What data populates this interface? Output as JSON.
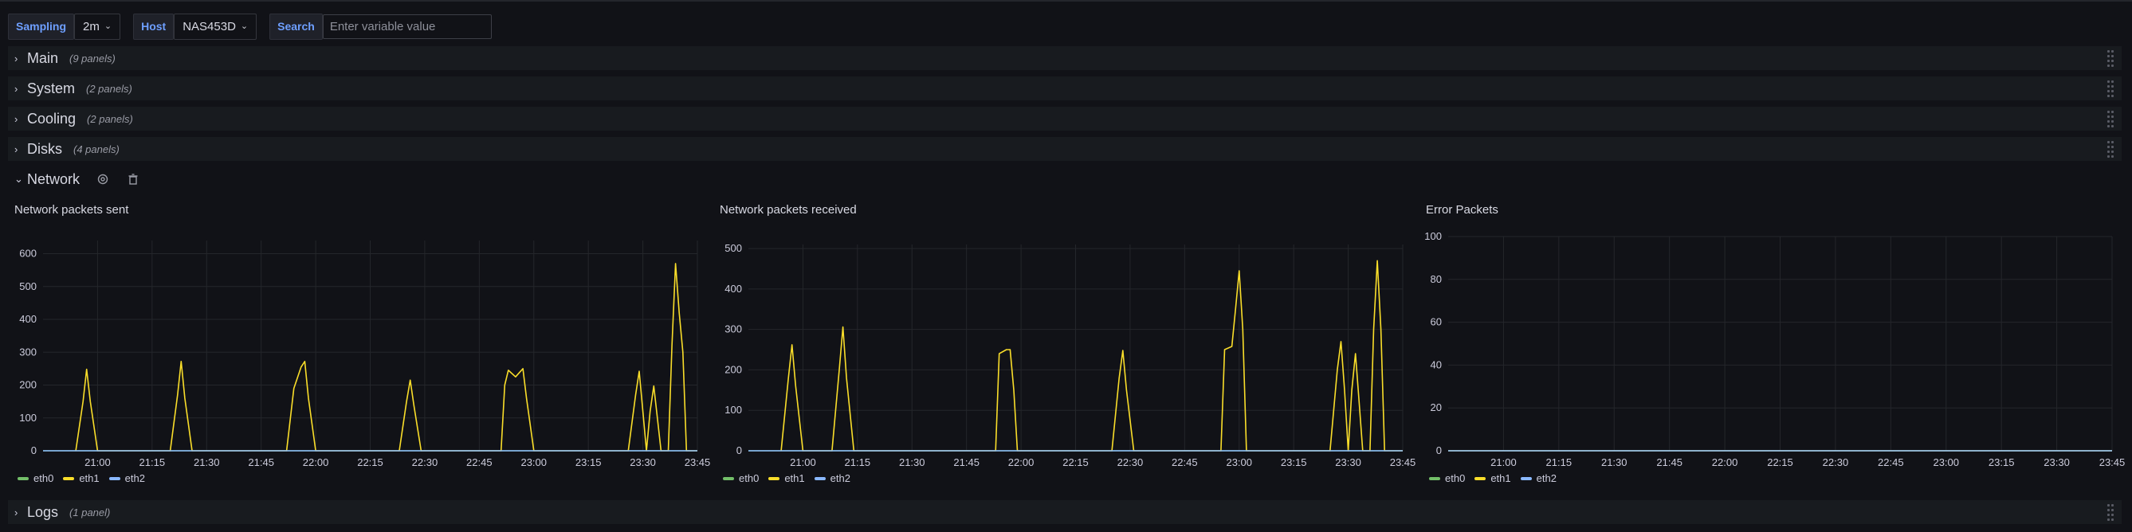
{
  "variables": [
    {
      "label": "Sampling",
      "value": "2m"
    },
    {
      "label": "Host",
      "value": "NAS453D"
    },
    {
      "label": "Search",
      "placeholder": "Enter variable value"
    }
  ],
  "rows": [
    {
      "title": "Main",
      "count": "(9 panels)",
      "expanded": false
    },
    {
      "title": "System",
      "count": "(2 panels)",
      "expanded": false
    },
    {
      "title": "Cooling",
      "count": "(2 panels)",
      "expanded": false
    },
    {
      "title": "Disks",
      "count": "(4 panels)",
      "expanded": false
    },
    {
      "title": "Network",
      "count": "",
      "expanded": true
    },
    {
      "title": "Logs",
      "count": "(1 panel)",
      "expanded": false
    }
  ],
  "colors": {
    "eth0": "#73bf69",
    "eth1": "#fade2a",
    "eth2": "#8ab8ff",
    "grid": "#24262b",
    "axis_text": "#ccccdc"
  },
  "panels": [
    {
      "title": "Network packets sent"
    },
    {
      "title": "Network packets received"
    },
    {
      "title": "Error Packets"
    }
  ],
  "legend": [
    "eth0",
    "eth1",
    "eth2"
  ],
  "chart_data": [
    {
      "type": "line",
      "title": "Network packets sent",
      "x_ticks": [
        "21:00",
        "21:15",
        "21:30",
        "21:45",
        "22:00",
        "22:15",
        "22:30",
        "22:45",
        "23:00",
        "23:15",
        "23:30",
        "23:45"
      ],
      "xlim": [
        "20:45",
        "23:45"
      ],
      "ylim": [
        0,
        640
      ],
      "y_ticks": [
        0,
        100,
        200,
        300,
        400,
        500,
        600
      ],
      "series": [
        {
          "name": "eth0",
          "values": [
            [
              "20:45",
              0
            ],
            [
              "23:45",
              0
            ]
          ]
        },
        {
          "name": "eth1",
          "values": [
            [
              "20:54",
              0
            ],
            [
              "20:56",
              150
            ],
            [
              "20:57",
              248
            ],
            [
              "20:58",
              150
            ],
            [
              "21:00",
              0
            ],
            [
              "21:20",
              0
            ],
            [
              "21:22",
              170
            ],
            [
              "21:23",
              272
            ],
            [
              "21:24",
              160
            ],
            [
              "21:26",
              0
            ],
            [
              "21:52",
              0
            ],
            [
              "21:54",
              190
            ],
            [
              "21:56",
              255
            ],
            [
              "21:57",
              272
            ],
            [
              "21:58",
              160
            ],
            [
              "22:00",
              0
            ],
            [
              "22:23",
              0
            ],
            [
              "22:25",
              150
            ],
            [
              "22:26",
              215
            ],
            [
              "22:27",
              140
            ],
            [
              "22:29",
              0
            ],
            [
              "22:51",
              0
            ],
            [
              "22:52",
              200
            ],
            [
              "22:53",
              245
            ],
            [
              "22:55",
              225
            ],
            [
              "22:57",
              250
            ],
            [
              "22:58",
              160
            ],
            [
              "23:00",
              0
            ],
            [
              "23:26",
              0
            ],
            [
              "23:28",
              170
            ],
            [
              "23:29",
              242
            ],
            [
              "23:30",
              120
            ],
            [
              "23:31",
              0
            ],
            [
              "23:32",
              120
            ],
            [
              "23:33",
              197
            ],
            [
              "23:34",
              100
            ],
            [
              "23:35",
              0
            ],
            [
              "23:37",
              0
            ],
            [
              "23:38",
              320
            ],
            [
              "23:39",
              570
            ],
            [
              "23:40",
              420
            ],
            [
              "23:41",
              300
            ],
            [
              "23:42",
              0
            ],
            [
              "23:45",
              0
            ]
          ]
        },
        {
          "name": "eth2",
          "values": [
            [
              "20:45",
              0
            ],
            [
              "23:45",
              0
            ]
          ]
        }
      ]
    },
    {
      "type": "line",
      "title": "Network packets received",
      "x_ticks": [
        "21:00",
        "21:15",
        "21:30",
        "21:45",
        "22:00",
        "22:15",
        "22:30",
        "22:45",
        "23:00",
        "23:15",
        "23:30",
        "23:45"
      ],
      "xlim": [
        "20:45",
        "23:45"
      ],
      "ylim": [
        0,
        510
      ],
      "y_ticks": [
        0,
        100,
        200,
        300,
        400,
        500
      ],
      "series": [
        {
          "name": "eth0",
          "values": [
            [
              "20:45",
              0
            ],
            [
              "23:45",
              0
            ]
          ]
        },
        {
          "name": "eth1",
          "values": [
            [
              "20:54",
              0
            ],
            [
              "20:56",
              180
            ],
            [
              "20:57",
              262
            ],
            [
              "20:58",
              160
            ],
            [
              "21:00",
              0
            ],
            [
              "21:08",
              0
            ],
            [
              "21:10",
              200
            ],
            [
              "21:11",
              306
            ],
            [
              "21:12",
              180
            ],
            [
              "21:14",
              0
            ],
            [
              "21:53",
              0
            ],
            [
              "21:54",
              240
            ],
            [
              "21:56",
              250
            ],
            [
              "21:57",
              250
            ],
            [
              "21:58",
              150
            ],
            [
              "21:59",
              0
            ],
            [
              "22:25",
              0
            ],
            [
              "22:27",
              180
            ],
            [
              "22:28",
              248
            ],
            [
              "22:29",
              150
            ],
            [
              "22:31",
              0
            ],
            [
              "22:55",
              0
            ],
            [
              "22:56",
              250
            ],
            [
              "22:58",
              258
            ],
            [
              "22:59",
              350
            ],
            [
              "23:00",
              445
            ],
            [
              "23:01",
              300
            ],
            [
              "23:02",
              0
            ],
            [
              "23:25",
              0
            ],
            [
              "23:27",
              200
            ],
            [
              "23:28",
              270
            ],
            [
              "23:29",
              150
            ],
            [
              "23:30",
              0
            ],
            [
              "23:31",
              150
            ],
            [
              "23:32",
              240
            ],
            [
              "23:33",
              120
            ],
            [
              "23:34",
              0
            ],
            [
              "23:36",
              0
            ],
            [
              "23:37",
              300
            ],
            [
              "23:38",
              470
            ],
            [
              "23:39",
              300
            ],
            [
              "23:40",
              0
            ],
            [
              "23:45",
              0
            ]
          ]
        },
        {
          "name": "eth2",
          "values": [
            [
              "20:45",
              0
            ],
            [
              "23:45",
              0
            ]
          ]
        }
      ]
    },
    {
      "type": "line",
      "title": "Error Packets",
      "x_ticks": [
        "21:00",
        "21:15",
        "21:30",
        "21:45",
        "22:00",
        "22:15",
        "22:30",
        "22:45",
        "23:00",
        "23:15",
        "23:30",
        "23:45"
      ],
      "xlim": [
        "20:45",
        "23:45"
      ],
      "ylim": [
        0,
        100
      ],
      "y_ticks": [
        0,
        20,
        40,
        60,
        80,
        100
      ],
      "series": [
        {
          "name": "eth0",
          "values": [
            [
              "20:45",
              0
            ],
            [
              "23:45",
              0
            ]
          ]
        },
        {
          "name": "eth1",
          "values": [
            [
              "20:45",
              0
            ],
            [
              "23:45",
              0
            ]
          ]
        },
        {
          "name": "eth2",
          "values": [
            [
              "20:45",
              0
            ],
            [
              "23:45",
              0
            ]
          ]
        }
      ]
    }
  ]
}
